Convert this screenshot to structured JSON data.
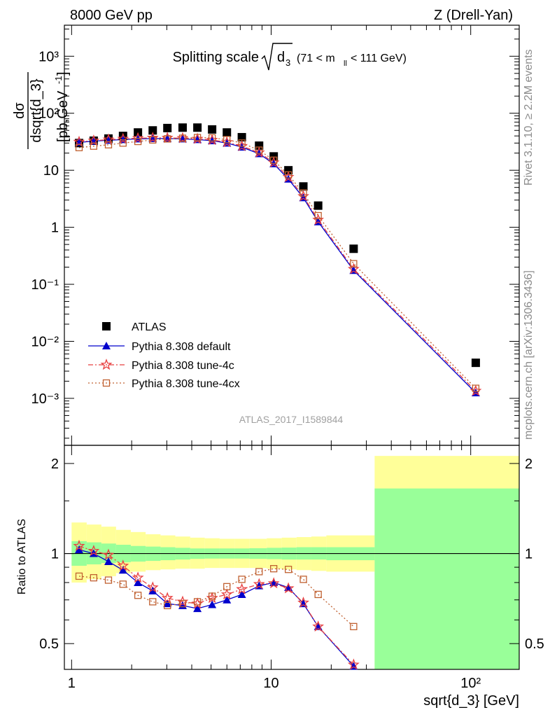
{
  "header": {
    "left": "8000 GeV pp",
    "right": "Z (Drell-Yan)"
  },
  "side_labels": {
    "rivet": "Rivet 3.1.10, ≥ 2.2M events",
    "mcplots": "mcplots.cern.ch [arXiv:1306.3436]"
  },
  "watermark": "ATLAS_2017_I1589844",
  "chart_data": [
    {
      "type": "scatter",
      "title": "Splitting scale",
      "title_symbol": "d",
      "title_symbol_sub": "3",
      "title_range_pre": "(71 < m",
      "title_range_sub": "ll",
      "title_range_post": "< 111 GeV)",
      "ylabel": "dσ/dsqrt{d_3} [pb,GeV⁻¹]",
      "ylabel_num": "dσ",
      "ylabel_den": "dsqrt{d_3}",
      "ylabel_unit_pre": "[pb,GeV",
      "ylabel_unit_exp": "-1",
      "ylabel_unit_post": "]",
      "xlog": true,
      "ylog": true,
      "xlim": [
        0.92,
        175
      ],
      "ylim": [
        0.00015,
        3500
      ],
      "ytick_labels": [
        "10⁻³",
        "10⁻²",
        "10⁻¹",
        "1",
        "10",
        "10²",
        "10³"
      ],
      "legend_position": "bottom-left",
      "x": [
        1.09,
        1.29,
        1.53,
        1.81,
        2.15,
        2.55,
        3.02,
        3.6,
        4.27,
        5.06,
        6.0,
        7.13,
        8.7,
        10.3,
        12.2,
        14.5,
        17.2,
        25.9,
        106.0
      ],
      "series": [
        {
          "name": "ATLAS",
          "marker": "square",
          "color": "#000000",
          "values": [
            30,
            33,
            36,
            40,
            46,
            50,
            55,
            56,
            56,
            52,
            46,
            38,
            27,
            17.5,
            10,
            5.2,
            2.4,
            0.42,
            0.0042
          ]
        },
        {
          "name": "Pythia 8.308 default",
          "marker": "triangle",
          "color": "#0000cc",
          "values": [
            30.8,
            32.5,
            33.5,
            34.5,
            35.5,
            36,
            36,
            35.5,
            34.5,
            33,
            30,
            25.5,
            19.5,
            13,
            7,
            3.3,
            1.25,
            0.175,
            0.00125
          ]
        },
        {
          "name": "Pythia 8.308 tune-4c",
          "marker": "star",
          "color": "#e84040",
          "values": [
            31.5,
            33,
            34.5,
            35.5,
            36.5,
            37,
            37,
            36.5,
            35.5,
            34,
            31,
            26.5,
            20.5,
            13.7,
            7.6,
            3.5,
            1.35,
            0.185,
            0.00135
          ]
        },
        {
          "name": "Pythia 8.308 tune-4cx",
          "marker": "open-square",
          "color": "#c06030",
          "values": [
            25,
            26.5,
            28,
            30,
            32,
            34,
            35.5,
            36.5,
            37.5,
            37,
            34.5,
            30,
            22.5,
            15,
            8.3,
            4.0,
            1.6,
            0.23,
            0.0015
          ]
        }
      ]
    },
    {
      "type": "line",
      "ylabel": "Ratio to ATLAS",
      "xlabel": "sqrt{d_3} [GeV]",
      "xlog": true,
      "ylog": true,
      "xlim": [
        0.92,
        175
      ],
      "ylim": [
        0.41,
        2.3
      ],
      "ytick_labels": [
        "0.5",
        "1",
        "2"
      ],
      "xtick_labels": [
        "1",
        "10",
        "10²"
      ],
      "reference_line": 1,
      "x": [
        1.09,
        1.29,
        1.53,
        1.81,
        2.15,
        2.55,
        3.02,
        3.6,
        4.27,
        5.06,
        6.0,
        7.13,
        8.7,
        10.3,
        12.2,
        14.5,
        17.2,
        25.9
      ],
      "series": [
        {
          "name": "Pythia 8.308 default",
          "color": "#0000cc",
          "values": [
            1.03,
            1.0,
            0.94,
            0.88,
            0.8,
            0.75,
            0.68,
            0.67,
            0.655,
            0.675,
            0.7,
            0.73,
            0.78,
            0.8,
            0.77,
            0.68,
            0.57,
            0.42
          ]
        },
        {
          "name": "Pythia 8.308 tune-4c",
          "color": "#e84040",
          "values": [
            1.06,
            1.02,
            0.99,
            0.91,
            0.83,
            0.77,
            0.71,
            0.69,
            0.68,
            0.71,
            0.73,
            0.76,
            0.79,
            0.795,
            0.765,
            0.685,
            0.57,
            0.425
          ]
        },
        {
          "name": "Pythia 8.308 tune-4cx",
          "color": "#c06030",
          "values": [
            0.84,
            0.83,
            0.815,
            0.79,
            0.725,
            0.69,
            0.67,
            0.68,
            0.69,
            0.72,
            0.775,
            0.82,
            0.87,
            0.89,
            0.885,
            0.82,
            0.73,
            0.57
          ]
        }
      ],
      "bands": {
        "x_edges": [
          1.0,
          1.19,
          1.41,
          1.67,
          1.98,
          2.35,
          2.79,
          3.31,
          3.93,
          4.65,
          5.52,
          6.55,
          7.77,
          9.5,
          11.3,
          13.4,
          15.9,
          18.9,
          33,
          175
        ],
        "stat_lo": [
          0.91,
          0.92,
          0.93,
          0.935,
          0.94,
          0.945,
          0.95,
          0.955,
          0.96,
          0.962,
          0.962,
          0.962,
          0.96,
          0.958,
          0.955,
          0.955,
          0.955,
          0.95,
          0.38
        ],
        "stat_hi": [
          1.1,
          1.09,
          1.08,
          1.07,
          1.06,
          1.055,
          1.05,
          1.045,
          1.04,
          1.04,
          1.04,
          1.04,
          1.042,
          1.045,
          1.047,
          1.05,
          1.05,
          1.05,
          1.65
        ],
        "tot_lo": [
          0.8,
          0.82,
          0.84,
          0.86,
          0.87,
          0.88,
          0.885,
          0.89,
          0.89,
          0.895,
          0.895,
          0.895,
          0.895,
          0.89,
          0.885,
          0.88,
          0.875,
          0.87,
          0.35
        ],
        "tot_hi": [
          1.27,
          1.25,
          1.23,
          1.2,
          1.18,
          1.16,
          1.15,
          1.14,
          1.13,
          1.125,
          1.12,
          1.12,
          1.12,
          1.125,
          1.13,
          1.135,
          1.14,
          1.15,
          2.12
        ]
      }
    }
  ]
}
